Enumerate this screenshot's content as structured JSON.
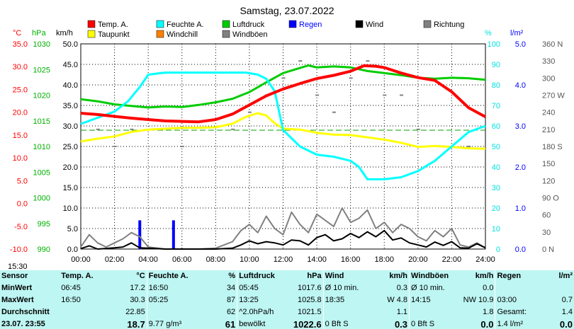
{
  "title": "Samstag, 23.07.2022",
  "time_label": "15:30",
  "colors": {
    "temp": "#ff0000",
    "dew": "#ffff00",
    "humidity": "#00ffff",
    "pressure": "#00cc00",
    "wind": "#000000",
    "gust": "#808080",
    "rain": "#0000ff",
    "windchill": "#ff8000",
    "dir": "#808080",
    "stats_bg": "#bdf6f3"
  },
  "chart_data": {
    "type": "line",
    "title": "Samstag, 23.07.2022",
    "x_ticks": [
      "00:00",
      "02:00",
      "04:00",
      "06:00",
      "08:00",
      "10:00",
      "12:00",
      "14:00",
      "16:00",
      "18:00",
      "20:00",
      "22:00",
      "24:00"
    ],
    "axes": {
      "temp": {
        "unit": "°C",
        "ticks": [
          "35.0",
          "30.0",
          "25.0",
          "20.0",
          "15.0",
          "10.0",
          "5.0",
          "0.0",
          "-5.0",
          "-10.0"
        ]
      },
      "pressure": {
        "unit": "hPa",
        "ticks": [
          "1030",
          "1025",
          "1020",
          "1015",
          "1010",
          "1005",
          "1000",
          "995",
          "990"
        ]
      },
      "wind": {
        "unit": "km/h",
        "ticks": [
          "50.0",
          "45.0",
          "40.0",
          "35.0",
          "30.0",
          "25.0",
          "20.0",
          "15.0",
          "10.0",
          "5.0",
          "0.0"
        ]
      },
      "humidity": {
        "unit": "%",
        "ticks": [
          "100",
          "90",
          "80",
          "70",
          "60",
          "50",
          "40",
          "30",
          "20",
          "10",
          "0"
        ]
      },
      "rain": {
        "unit": "l/m²",
        "ticks": [
          "5.0",
          "4.0",
          "3.0",
          "2.0",
          "1.0",
          "0.0"
        ]
      },
      "direction": {
        "ticks": [
          "360 N",
          "330",
          "300",
          "270 W",
          "240",
          "210",
          "180 S",
          "150",
          "120",
          "90 O",
          "60",
          "30",
          "0 N"
        ]
      }
    },
    "legend": [
      {
        "label": "Temp. A.",
        "color": "#ff0000"
      },
      {
        "label": "Feuchte A.",
        "color": "#00ffff"
      },
      {
        "label": "Luftdruck",
        "color": "#00cc00"
      },
      {
        "label": "Regen",
        "color": "#0000ff"
      },
      {
        "label": "Wind",
        "color": "#000000"
      },
      {
        "label": "Richtung",
        "color": "#808080"
      },
      {
        "label": "Taupunkt",
        "color": "#ffff00"
      },
      {
        "label": "Windchill",
        "color": "#ff8000"
      },
      {
        "label": "Windböen",
        "color": "#808080"
      }
    ],
    "series": [
      {
        "name": "Temp. A.",
        "unit": "°C",
        "x": [
          0,
          1,
          2,
          3,
          4,
          5,
          6,
          7,
          8,
          9,
          10,
          11,
          12,
          13,
          14,
          15,
          16,
          16.8,
          17.5,
          18,
          19,
          20,
          21,
          22,
          23,
          24
        ],
        "values": [
          19.8,
          19.5,
          19.1,
          18.7,
          18.4,
          18.1,
          18.0,
          17.9,
          18.4,
          19.6,
          21.6,
          23.6,
          25.1,
          26.3,
          27.4,
          28.1,
          29.0,
          30.2,
          30.1,
          29.8,
          28.6,
          27.6,
          27.0,
          24.5,
          21.0,
          19.0
        ]
      },
      {
        "name": "Taupunkt",
        "unit": "°C",
        "x": [
          0,
          1,
          2,
          3,
          4,
          5,
          6,
          7,
          8,
          9,
          9.8,
          10.5,
          11,
          11.5,
          12,
          13,
          14,
          15,
          16,
          17,
          18,
          19,
          20,
          21,
          22,
          23,
          24
        ],
        "values": [
          13.6,
          14.2,
          14.7,
          15.7,
          16.2,
          16.4,
          16.6,
          16.6,
          16.7,
          17.5,
          19.0,
          19.8,
          19.3,
          17.6,
          16.4,
          16.2,
          15.5,
          15.1,
          15.0,
          14.5,
          14.0,
          13.3,
          12.4,
          12.6,
          12.4,
          12.1,
          12.0
        ]
      },
      {
        "name": "Feuchte A.",
        "unit": "%",
        "x": [
          0,
          1,
          2,
          2.8,
          3.5,
          4,
          5,
          6,
          7,
          8,
          9,
          9.8,
          10.5,
          11,
          11.5,
          12,
          13,
          14,
          15,
          16,
          16.5,
          17,
          18,
          19,
          20,
          21,
          22,
          23,
          24
        ],
        "values": [
          61,
          64,
          67,
          72,
          79,
          85,
          86,
          86,
          86,
          86,
          86,
          86,
          85,
          83,
          77,
          58,
          50,
          46,
          45,
          43,
          40,
          34,
          34,
          35,
          38,
          43,
          50,
          57,
          60
        ]
      },
      {
        "name": "Luftdruck",
        "unit": "hPa",
        "x": [
          0,
          1,
          2,
          3,
          4,
          5,
          6,
          7,
          8,
          9,
          10,
          11,
          12,
          13,
          13.5,
          14,
          15,
          16,
          17,
          18,
          19,
          20,
          21,
          22,
          23,
          24
        ],
        "values": [
          1019.2,
          1018.8,
          1018.2,
          1017.9,
          1017.6,
          1017.8,
          1017.7,
          1018.1,
          1018.6,
          1019.3,
          1020.6,
          1022.5,
          1024.3,
          1025.3,
          1025.8,
          1025.4,
          1025.6,
          1025.4,
          1024.7,
          1024.3,
          1023.9,
          1023.4,
          1023.2,
          1023.4,
          1023.3,
          1023.0
        ]
      },
      {
        "name": "Wind",
        "unit": "km/h",
        "x": [
          0,
          0.5,
          1,
          2,
          2.5,
          3,
          3.5,
          4,
          5,
          6,
          7,
          8,
          9,
          9.5,
          10,
          10.5,
          11,
          11.5,
          12,
          12.5,
          13,
          13.5,
          14,
          14.5,
          15,
          15.5,
          16,
          16.5,
          17,
          17.5,
          18,
          18.5,
          19,
          19.5,
          20,
          20.5,
          21,
          21.5,
          22,
          22.5,
          23,
          23.5,
          24
        ],
        "values": [
          0.1,
          0.8,
          0,
          0.3,
          0.5,
          1.5,
          0.3,
          0.2,
          0,
          0,
          0,
          0,
          0.2,
          1.0,
          2.0,
          1.3,
          1.8,
          1.5,
          1.0,
          2.2,
          2.0,
          1.0,
          2.8,
          3.5,
          2.0,
          2.5,
          3.8,
          2.8,
          4.2,
          3.0,
          4.5,
          2.2,
          2.7,
          1.5,
          1.0,
          0.5,
          1.7,
          0.9,
          1.8,
          0.3,
          0.2,
          1.3,
          0.3
        ]
      },
      {
        "name": "Windböen",
        "unit": "km/h",
        "x": [
          0,
          0.5,
          1,
          1.5,
          2,
          2.5,
          3,
          3.5,
          4,
          5,
          6,
          7,
          8,
          9,
          9.5,
          10,
          10.5,
          11,
          11.5,
          12,
          12.5,
          13,
          13.5,
          14,
          14.5,
          15,
          15.5,
          16,
          16.5,
          17,
          17.5,
          18,
          18.5,
          19,
          19.5,
          20,
          20.5,
          21,
          21.5,
          22,
          22.5,
          23,
          23.5,
          24
        ],
        "values": [
          0.5,
          3.5,
          1.5,
          0.5,
          1.5,
          2.5,
          4.0,
          3.0,
          0.5,
          0,
          0,
          0,
          0.2,
          1.8,
          4.5,
          6.0,
          4.0,
          8.0,
          5.0,
          3.5,
          9.0,
          6.0,
          4.0,
          8.5,
          7.0,
          5.5,
          10.0,
          6.5,
          7.5,
          9.5,
          5.0,
          6.5,
          4.0,
          6.0,
          5.0,
          3.0,
          2.0,
          4.5,
          3.0,
          5.0,
          1.0,
          0.5,
          1.5,
          0.3
        ]
      },
      {
        "name": "Regen",
        "unit": "l/m²",
        "x": [
          3.5,
          5.5
        ],
        "values": [
          0.7,
          0.7
        ]
      },
      {
        "name": "Richtung",
        "unit": "°",
        "x": [
          1,
          2,
          3,
          6,
          9,
          10,
          11,
          12,
          13,
          14,
          15,
          16,
          17,
          18,
          19,
          20,
          21,
          22,
          23
        ],
        "values": [
          210,
          180,
          210,
          180,
          210,
          240,
          270,
          300,
          330,
          270,
          240,
          300,
          330,
          270,
          270,
          210,
          180,
          180,
          180
        ]
      }
    ]
  },
  "stats": {
    "headers": {
      "sensor": "Sensor",
      "temp": "Temp. A.",
      "temp_unit": "°C",
      "hum": "Feuchte A.",
      "hum_unit": "%",
      "press": "Luftdruck",
      "press_unit": "hPa",
      "wind": "Wind",
      "wind_unit": "km/h",
      "gust": "Windböen",
      "gust_unit": "km/h",
      "rain": "Regen",
      "rain_unit": "l/m²"
    },
    "rows": [
      {
        "label": "MinWert",
        "temp_t": "06:45",
        "temp_v": "17.2",
        "hum_t": "16:50",
        "hum_v": "34",
        "press_t": "05:45",
        "press_v": "1017.6",
        "wind_t": "Ø 10 min.",
        "wind_v": "0.3",
        "gust_t": "Ø 10 min.",
        "gust_v": "0.0",
        "rain_t": "",
        "rain_v": ""
      },
      {
        "label": "MaxWert",
        "temp_t": "16:50",
        "temp_v": "30.3",
        "hum_t": "05:25",
        "hum_v": "87",
        "press_t": "13:25",
        "press_v": "1025.8",
        "wind_t": "18:35",
        "wind_v": "W 4.8",
        "gust_t": "14:15",
        "gust_v": "NW 10.9",
        "rain_t": "03:00",
        "rain_v": "0.7"
      },
      {
        "label": "Durchschnitt",
        "temp_t": "",
        "temp_v": "22.85",
        "hum_t": "",
        "hum_v": "62",
        "press_t": "^2.0hPa/h",
        "press_v": "1021.5",
        "wind_t": "",
        "wind_v": "1.1",
        "gust_t": "",
        "gust_v": "1.8",
        "rain_t": "Gesamt:",
        "rain_v": "1.4"
      },
      {
        "label": "23.07. 23:55",
        "temp_t": "",
        "temp_v": "18.7",
        "hum_t": "9.77 g/m³",
        "hum_v": "61",
        "press_t": "bewölkt",
        "press_v": "1022.6",
        "wind_t": "0 Bft S",
        "wind_v": "0.3",
        "gust_t": "0 Bft S",
        "gust_v": "0.0",
        "rain_t": "1.4 l/m²",
        "rain_v": "0.0"
      }
    ]
  }
}
